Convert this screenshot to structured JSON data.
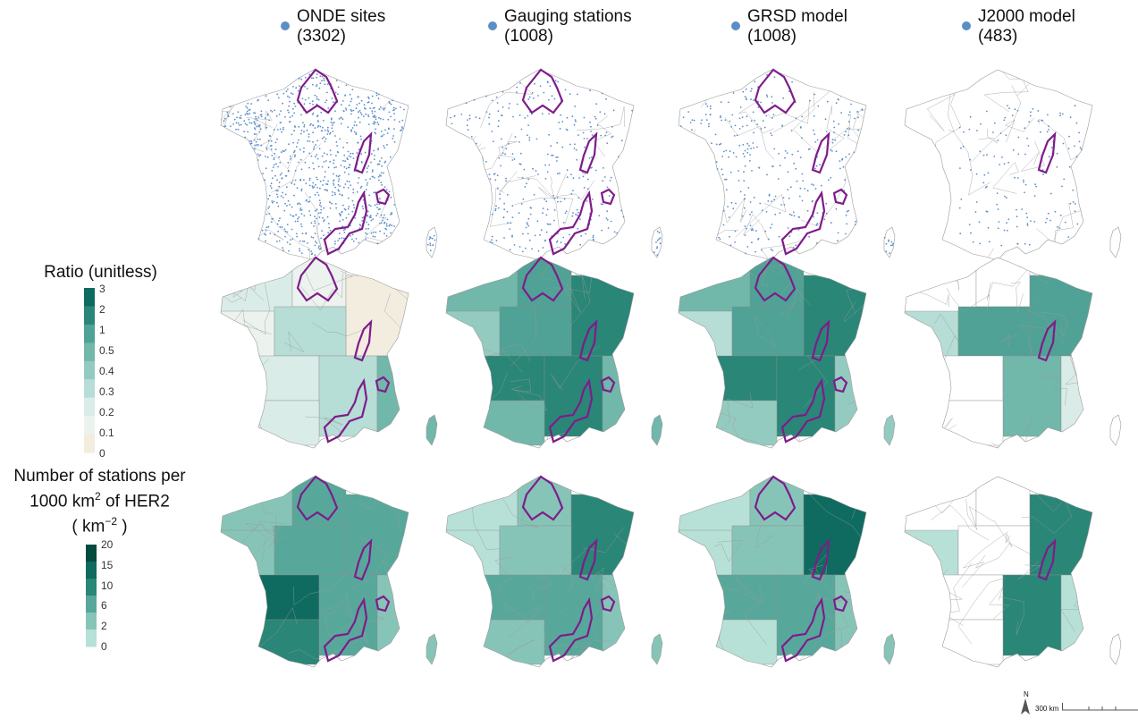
{
  "columns": [
    {
      "label": "ONDE sites",
      "count": "(3302)"
    },
    {
      "label": "Gauging stations",
      "count": "(1008)"
    },
    {
      "label": "GRSD model",
      "count": "(1008)"
    },
    {
      "label": "J2000 model",
      "count": "(483)"
    }
  ],
  "legend_ratio": {
    "title": "Ratio (unitless)",
    "ticks": [
      "3",
      "2",
      "1",
      "0.5",
      "0.4",
      "0.3",
      "0.2",
      "0.1",
      "0"
    ],
    "colors": [
      "#0f6b5f",
      "#2a8677",
      "#4fa295",
      "#71b7aa",
      "#94cbc0",
      "#b6ddd6",
      "#d9ece8",
      "#ecf2ee",
      "#f3ede0"
    ]
  },
  "legend_density": {
    "title_line1": "Number of stations per",
    "title_line2a": "1000  km",
    "title_line2_sup": "2",
    "title_line2b": "  of HER2",
    "title_line3a": "( km",
    "title_line3_sup": "−2",
    "title_line3b": " )",
    "ticks": [
      "20",
      "15",
      "10",
      "6",
      "2",
      "0"
    ],
    "colors": [
      "#034a3f",
      "#0f6b5f",
      "#2a8677",
      "#57a89b",
      "#87c4b8",
      "#b7e0d7"
    ]
  },
  "scalebar": {
    "north": "N",
    "distance": "300 km"
  },
  "colors": {
    "points": "#5b8ec7",
    "highlight": "#7e1c8a",
    "border": "#9a9a9a"
  }
}
